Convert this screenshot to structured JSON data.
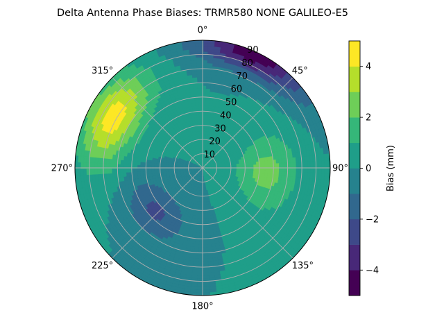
{
  "chart_data": {
    "type": "polar_contour",
    "title": "Delta Antenna Phase Biases: TRMR580         NONE GALILEO-E5",
    "angle_tick_labels": [
      "0°",
      "45°",
      "90°",
      "135°",
      "180°",
      "225°",
      "270°",
      "315°"
    ],
    "angle_ticks_deg": [
      0,
      45,
      90,
      135,
      180,
      225,
      270,
      315
    ],
    "radial_tick_labels": [
      "10",
      "20",
      "30",
      "40",
      "50",
      "60",
      "70",
      "80",
      "90"
    ],
    "radial_ticks": [
      10,
      20,
      30,
      40,
      50,
      60,
      70,
      80,
      90
    ],
    "radial_range": [
      0,
      90
    ],
    "angle_direction": "clockwise",
    "zero_location": "top",
    "colormap": "viridis",
    "levels": [
      -5,
      -4,
      -3,
      -2,
      -1,
      0,
      1,
      2,
      3,
      4,
      5
    ],
    "level_colors": [
      "#440154",
      "#482878",
      "#3e4989",
      "#31688e",
      "#26828e",
      "#1f9e89",
      "#35b779",
      "#6ece58",
      "#b5de2b",
      "#fde725"
    ],
    "colorbar": {
      "label": "Bias (mm)",
      "tick_labels": [
        "−4",
        "−2",
        "0",
        "2",
        "4"
      ],
      "ticks": [
        -4,
        -2,
        0,
        2,
        4
      ],
      "range": [
        -5,
        5
      ]
    },
    "features": [
      {
        "name": "high-bias-ridge",
        "azimuth_deg": 300,
        "zenith_center": 72,
        "peak_bias_mm": 4.4,
        "az_width_deg": 20,
        "zen_width": 14
      },
      {
        "name": "north-low",
        "azimuth_deg": 25,
        "zenith_center": 88,
        "peak_bias_mm": -4.6,
        "az_width_deg": 20,
        "zen_width": 10
      },
      {
        "name": "east-positive",
        "azimuth_deg": 95,
        "zenith_center": 45,
        "peak_bias_mm": 2.4,
        "az_width_deg": 24,
        "zen_width": 16
      },
      {
        "name": "southwest-negative",
        "azimuth_deg": 228,
        "zenith_center": 45,
        "peak_bias_mm": -2.2,
        "az_width_deg": 22,
        "zen_width": 12
      }
    ],
    "grid": true,
    "legend": "colorbar-right"
  }
}
